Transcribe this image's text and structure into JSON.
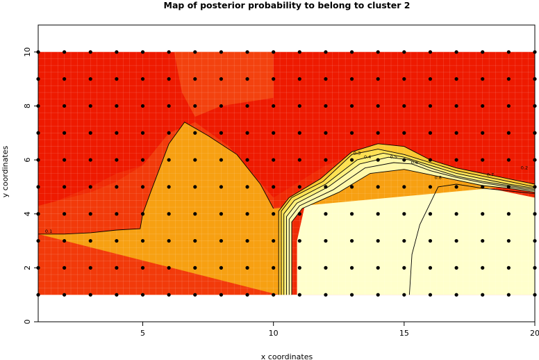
{
  "chart_data": {
    "type": "heatmap",
    "title": "Map of posterior probability to belong to cluster  2",
    "xlabel": "x coordinates",
    "ylabel": "y coordinates",
    "xlim": [
      1,
      20
    ],
    "ylim": [
      0,
      11
    ],
    "x_ticks": [
      5,
      10,
      15,
      20
    ],
    "y_ticks": [
      0,
      2,
      4,
      6,
      8,
      10
    ],
    "grid_points": {
      "x": [
        1,
        2,
        3,
        4,
        5,
        6,
        7,
        8,
        9,
        10,
        11,
        12,
        13,
        14,
        15,
        16,
        17,
        18,
        19,
        20
      ],
      "y": [
        1,
        2,
        3,
        4,
        5,
        6,
        7,
        8,
        9,
        10
      ]
    },
    "field_extent": {
      "x": [
        1,
        20
      ],
      "y": [
        1,
        10
      ]
    },
    "regions": [
      {
        "name": "p~0.0",
        "color": "#ee1a00",
        "polygon": [
          [
            1,
            10
          ],
          [
            20,
            10
          ],
          [
            20,
            5.2
          ],
          [
            17,
            5.6
          ],
          [
            15,
            6.2
          ],
          [
            14,
            6.5
          ],
          [
            12,
            5.8
          ],
          [
            10,
            4.6
          ],
          [
            9,
            5
          ],
          [
            8,
            6
          ],
          [
            7,
            7.3
          ],
          [
            6,
            6.8
          ],
          [
            5,
            5.8
          ],
          [
            4,
            5.5
          ],
          [
            3,
            5
          ],
          [
            1,
            4.2
          ]
        ]
      },
      {
        "name": "p~0.1",
        "color": "#f23a0a",
        "polygon": [
          [
            1,
            1
          ],
          [
            10,
            1
          ],
          [
            10,
            4.6
          ],
          [
            8.3,
            6.5
          ],
          [
            7,
            7.4
          ],
          [
            6,
            7
          ],
          [
            5,
            5.8
          ],
          [
            4,
            5.2
          ],
          [
            3,
            4.8
          ],
          [
            1,
            4.3
          ]
        ]
      },
      {
        "name": "p~0.1b",
        "color": "#f3420f",
        "polygon": [
          [
            6.2,
            10
          ],
          [
            10,
            10
          ],
          [
            10,
            8.3
          ],
          [
            8,
            8
          ],
          [
            7,
            7.6
          ],
          [
            6.5,
            8.5
          ]
        ]
      },
      {
        "name": "p~0.9",
        "color": "#ffffcc",
        "polygon": [
          [
            10.9,
            1
          ],
          [
            15,
            1
          ],
          [
            20,
            1
          ],
          [
            20,
            4.6
          ],
          [
            18,
            5
          ],
          [
            16,
            5.2
          ],
          [
            14,
            5.1
          ],
          [
            12,
            4.8
          ],
          [
            11.2,
            4.3
          ],
          [
            10.9,
            3
          ]
        ]
      }
    ],
    "contour_lines": [
      {
        "level": 0.1,
        "points": [
          [
            1,
            3.25
          ],
          [
            2,
            3.25
          ],
          [
            3,
            3.3
          ],
          [
            4,
            3.4
          ],
          [
            4.9,
            3.45
          ],
          [
            5,
            4
          ],
          [
            5.3,
            4.8
          ],
          [
            6,
            6.6
          ],
          [
            6.6,
            7.4
          ],
          [
            7.5,
            6.9
          ],
          [
            8.6,
            6.2
          ],
          [
            9.5,
            5.1
          ],
          [
            10,
            4.2
          ]
        ]
      },
      {
        "level": 0.2,
        "points": [
          [
            10.2,
            1
          ],
          [
            10.2,
            4.1
          ],
          [
            10.6,
            4.6
          ],
          [
            11.8,
            5.3
          ],
          [
            13,
            6.3
          ],
          [
            14,
            6.6
          ],
          [
            15,
            6.5
          ],
          [
            16,
            6
          ],
          [
            17,
            5.7
          ],
          [
            18,
            5.5
          ],
          [
            19,
            5.3
          ],
          [
            20,
            5.1
          ]
        ]
      },
      {
        "level": 0.3,
        "points": [
          [
            10.3,
            1
          ],
          [
            10.3,
            4.1
          ],
          [
            10.7,
            4.6
          ],
          [
            11.9,
            5.2
          ],
          [
            13,
            6.2
          ],
          [
            14,
            6.4
          ],
          [
            15,
            6.2
          ],
          [
            16,
            5.9
          ],
          [
            17,
            5.6
          ],
          [
            18,
            5.4
          ],
          [
            19,
            5.2
          ],
          [
            20,
            5
          ]
        ]
      },
      {
        "level": 0.4,
        "points": [
          [
            10.4,
            1
          ],
          [
            10.4,
            4
          ],
          [
            10.8,
            4.5
          ],
          [
            12,
            5.1
          ],
          [
            13.2,
            6
          ],
          [
            14.2,
            6.25
          ],
          [
            15,
            6.1
          ],
          [
            16,
            5.8
          ],
          [
            17,
            5.5
          ],
          [
            18,
            5.3
          ],
          [
            19,
            5.1
          ],
          [
            20,
            4.95
          ]
        ]
      },
      {
        "level": 0.5,
        "points": [
          [
            10.5,
            1
          ],
          [
            10.5,
            3.9
          ],
          [
            10.9,
            4.4
          ],
          [
            12.1,
            5
          ],
          [
            13.3,
            5.85
          ],
          [
            14.4,
            6.1
          ],
          [
            15.2,
            6
          ],
          [
            16,
            5.7
          ],
          [
            17,
            5.4
          ],
          [
            18,
            5.2
          ],
          [
            19,
            5.05
          ],
          [
            20,
            4.9
          ]
        ]
      },
      {
        "level": 0.6,
        "points": [
          [
            10.6,
            1
          ],
          [
            10.6,
            3.8
          ],
          [
            11,
            4.3
          ],
          [
            12.3,
            4.9
          ],
          [
            13.5,
            5.7
          ],
          [
            14.6,
            5.9
          ],
          [
            15.3,
            5.85
          ],
          [
            16,
            5.6
          ],
          [
            17,
            5.35
          ],
          [
            18,
            5.15
          ],
          [
            19,
            5
          ],
          [
            20,
            4.85
          ]
        ]
      },
      {
        "level": 0.7,
        "points": [
          [
            10.7,
            1
          ],
          [
            10.7,
            3.7
          ],
          [
            11.1,
            4.2
          ],
          [
            12.5,
            4.8
          ],
          [
            13.7,
            5.5
          ],
          [
            15,
            5.65
          ],
          [
            16,
            5.45
          ],
          [
            17,
            5.25
          ],
          [
            18,
            5.05
          ],
          [
            19,
            4.95
          ],
          [
            20,
            4.8
          ]
        ]
      },
      {
        "level": 0.8,
        "points": [
          [
            15.2,
            1
          ],
          [
            15.3,
            2.5
          ],
          [
            15.6,
            3.6
          ],
          [
            16,
            4.4
          ],
          [
            16.3,
            5
          ],
          [
            17,
            5.1
          ],
          [
            18,
            4.95
          ],
          [
            19,
            4.85
          ],
          [
            20,
            4.75
          ]
        ]
      }
    ],
    "contour_labels": [
      {
        "text": "0.1",
        "x": 1.4,
        "y": 3.3
      },
      {
        "text": "0.3",
        "x": 13.2,
        "y": 6.2
      },
      {
        "text": "0.4",
        "x": 13.6,
        "y": 6.05
      },
      {
        "text": "0.5",
        "x": 14.6,
        "y": 6.05
      },
      {
        "text": "0.6",
        "x": 15.4,
        "y": 5.85
      },
      {
        "text": "0.8",
        "x": 16.3,
        "y": 5.3
      },
      {
        "text": "0.7",
        "x": 18.3,
        "y": 5.4
      },
      {
        "text": "0.2",
        "x": 19.6,
        "y": 5.65
      }
    ],
    "grid": true,
    "legend": "none",
    "colors": {
      "background": "#ffffff",
      "points": "#000000",
      "contours": "#000000",
      "frame": "#000000"
    }
  }
}
